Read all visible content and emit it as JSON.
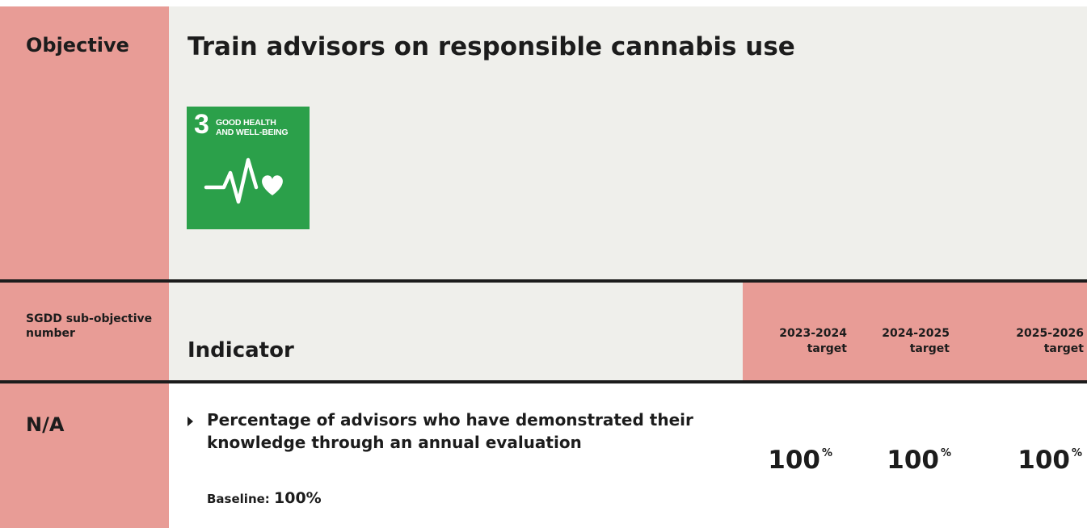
{
  "objective": {
    "label": "Objective",
    "title_bold": "Train",
    "title_rest": " advisors on responsible cannabis use"
  },
  "sdg": {
    "number": "3",
    "line1": "GOOD HEALTH",
    "line2": "AND WELL-BEING",
    "icon": "heartbeat-heart-icon",
    "color": "#2ba04a"
  },
  "table": {
    "header": {
      "sgdd": "SGDD sub-objective number",
      "indicator": "Indicator",
      "targets": [
        {
          "years": "2023-2024",
          "label": "target"
        },
        {
          "years": "2024-2025",
          "label": "target"
        },
        {
          "years": "2025-2026",
          "label": "target"
        }
      ]
    },
    "rows": [
      {
        "sgdd": "N/A",
        "indicator": "Percentage of advisors who have demonstrated their knowledge through an annual evaluation",
        "baseline_label": "Baseline: ",
        "baseline_value": "100%",
        "targets": [
          {
            "value": "100",
            "unit": "%"
          },
          {
            "value": "100",
            "unit": "%"
          },
          {
            "value": "100",
            "unit": "%"
          }
        ]
      }
    ]
  },
  "colors": {
    "accent_pink": "#e89c96",
    "panel_gray": "#efefeb",
    "text_dark": "#1c1c1c"
  }
}
